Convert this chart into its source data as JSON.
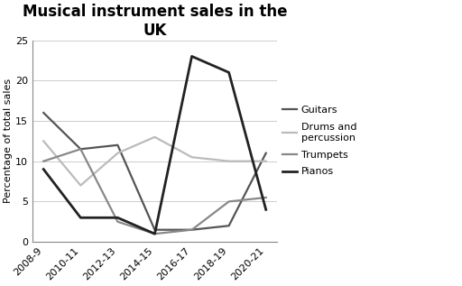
{
  "title": "Musical instrument sales in the\nUK",
  "ylabel": "Percentage of total sales",
  "x_labels": [
    "2008-9",
    "2010-11",
    "2012-13",
    "2014-15",
    "2016-17",
    "2018-19",
    "2020-21"
  ],
  "series": {
    "Guitars": {
      "values": [
        16,
        11.5,
        12,
        1.5,
        1.5,
        2,
        11
      ],
      "color": "#555555",
      "linewidth": 1.6
    },
    "Drums and percussion": {
      "values": [
        12.5,
        7,
        11,
        13,
        10.5,
        10,
        10
      ],
      "color": "#bbbbbb",
      "linewidth": 1.6
    },
    "Trumpets": {
      "values": [
        10,
        11.5,
        2.5,
        1,
        1.5,
        5,
        5.5
      ],
      "color": "#888888",
      "linewidth": 1.6
    },
    "Pianos": {
      "values": [
        9,
        3,
        3,
        1,
        23,
        21,
        4
      ],
      "color": "#222222",
      "linewidth": 2.0
    }
  },
  "legend_order": [
    "Guitars",
    "Drums and percussion",
    "Trumpets",
    "Pianos"
  ],
  "legend_display": [
    "Guitars",
    "Drums and\npercussion",
    "Trumpets",
    "Pianos"
  ],
  "ylim": [
    0,
    25
  ],
  "yticks": [
    0,
    5,
    10,
    15,
    20,
    25
  ],
  "background_color": "#ffffff",
  "title_fontsize": 12,
  "axis_label_fontsize": 8,
  "tick_fontsize": 8,
  "legend_fontsize": 8
}
